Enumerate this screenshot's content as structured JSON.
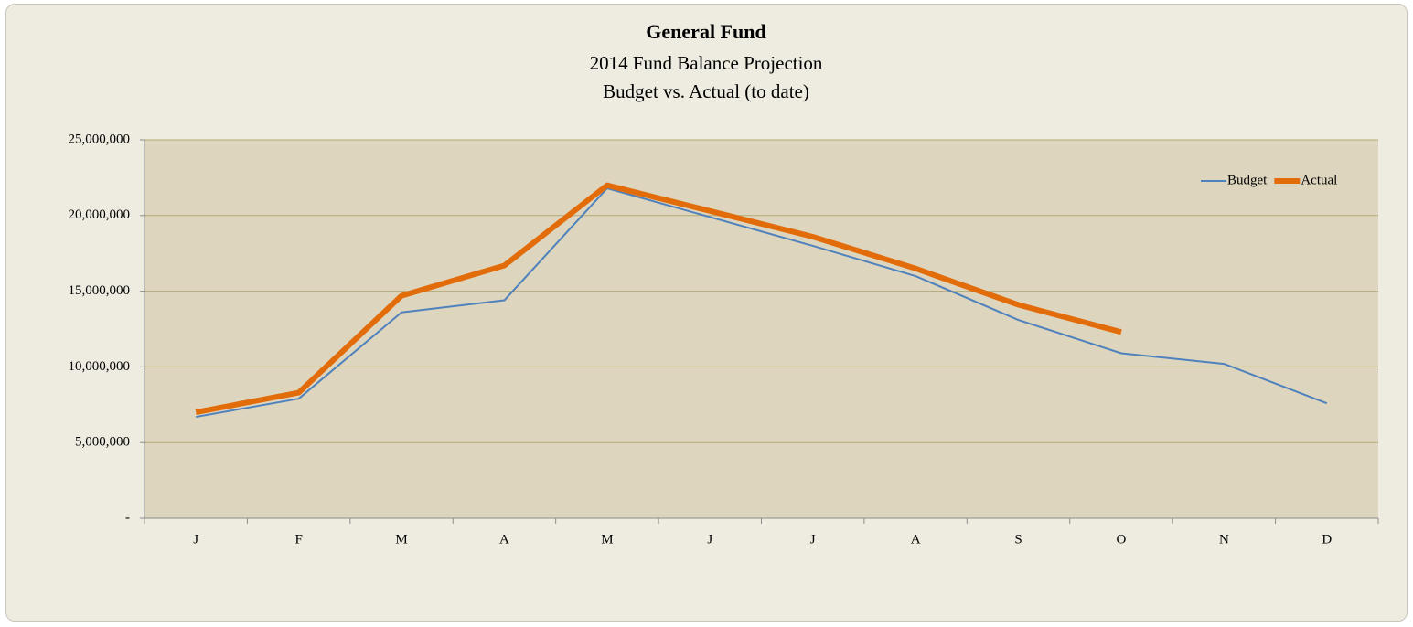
{
  "chart_data": {
    "type": "line",
    "title": "General Fund",
    "subtitle": [
      "2014 Fund Balance Projection",
      "Budget vs. Actual (to date)"
    ],
    "categories": [
      "J",
      "F",
      "M",
      "A",
      "M",
      "J",
      "J",
      "A",
      "S",
      "O",
      "N",
      "D"
    ],
    "series": [
      {
        "name": "Budget",
        "color": "#4f81bd",
        "width": 2,
        "values": [
          6700000,
          7900000,
          13600000,
          14400000,
          21800000,
          19900000,
          18000000,
          16000000,
          13100000,
          10900000,
          10200000,
          7600000
        ]
      },
      {
        "name": "Actual",
        "color": "#e36c0a",
        "width": 6,
        "values": [
          7000000,
          8300000,
          14700000,
          16700000,
          22000000,
          20300000,
          18600000,
          16500000,
          14100000,
          12300000,
          null,
          null
        ]
      }
    ],
    "ylim": [
      0,
      25000000
    ],
    "yticks": [
      {
        "value": 0,
        "label": "-"
      },
      {
        "value": 5000000,
        "label": "5,000,000"
      },
      {
        "value": 10000000,
        "label": "10,000,000"
      },
      {
        "value": 15000000,
        "label": "15,000,000"
      },
      {
        "value": 20000000,
        "label": "20,000,000"
      },
      {
        "value": 25000000,
        "label": "25,000,000"
      }
    ],
    "grid": true,
    "legend": "top-right"
  }
}
